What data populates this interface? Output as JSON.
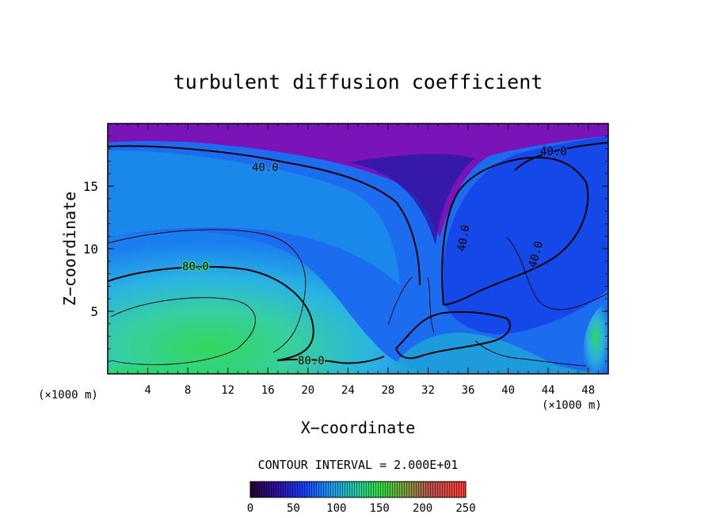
{
  "chart_data": {
    "type": "heatmap",
    "title": "turbulent diffusion coefficient",
    "xlabel": "X−coordinate",
    "ylabel": "Z−coordinate",
    "x_unit": "(×1000 m)",
    "x_unit_right": "(×1000 m)",
    "xlim": [
      0,
      50
    ],
    "ylim": [
      0,
      20
    ],
    "xticks": [
      "4",
      "8",
      "12",
      "16",
      "20",
      "24",
      "28",
      "32",
      "36",
      "40",
      "44",
      "48"
    ],
    "xtick_values": [
      4,
      8,
      12,
      16,
      20,
      24,
      28,
      32,
      36,
      40,
      44,
      48
    ],
    "yticks": [
      "5",
      "10",
      "15"
    ],
    "ytick_values": [
      5,
      10,
      15
    ],
    "contour_interval_text": "CONTOUR INTERVAL = 2.000E+01",
    "contour_labels": [
      {
        "text": "40.0",
        "x": 15.5,
        "z": 16.6
      },
      {
        "text": "40.0",
        "x": 42.5,
        "z": 17.7
      },
      {
        "text": "40.0",
        "x": 34.0,
        "z": 10.5
      },
      {
        "text": "40.0",
        "x": 41.5,
        "z": 9.8
      },
      {
        "text": "80.0",
        "x": 8.5,
        "z": 8.5
      },
      {
        "text": "80.0",
        "x": 20.0,
        "z": 1.2
      }
    ],
    "colorbar": {
      "min": 0,
      "max": 250,
      "ticks": [
        "0",
        "50",
        "100",
        "150",
        "200",
        "250"
      ],
      "tick_values": [
        0,
        50,
        100,
        150,
        200,
        250
      ]
    }
  }
}
